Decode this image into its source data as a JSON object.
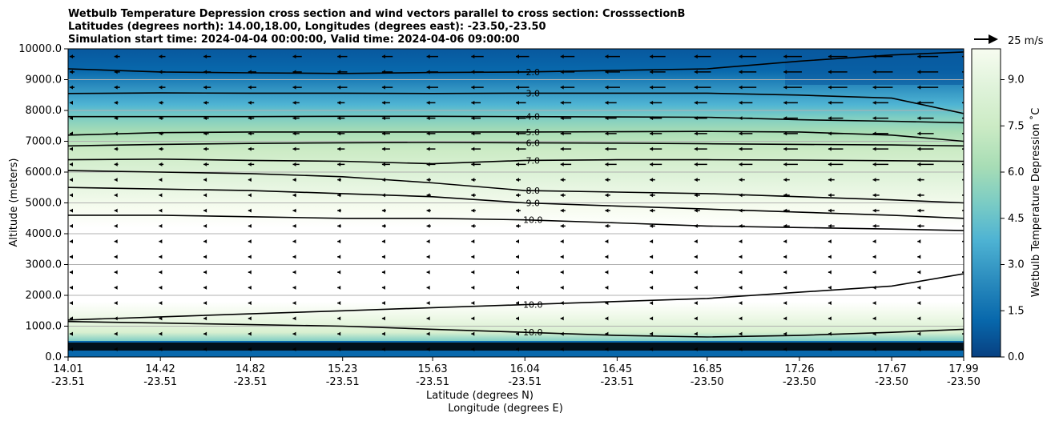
{
  "chart_data": {
    "type": "filled-contour",
    "title_lines": [
      "Wetbulb Temperature Depression cross section and wind vectors parallel to cross section: CrosssectionB",
      "Latitudes (degrees north): 14.00,18.00, Longitudes (degrees east): -23.50,-23.50",
      "Simulation start time: 2024-04-04 00:00:00, Valid time: 2024-04-06 09:00:00"
    ],
    "ylabel": "Altitude (meters)",
    "xlabel_lat": "Latitude (degrees N)",
    "xlabel_lon": "Longitude (degrees E)",
    "ylim": [
      0,
      10000
    ],
    "y_ticks": [
      {
        "value": 0,
        "label": "0.0"
      },
      {
        "value": 1000,
        "label": "1000.0"
      },
      {
        "value": 2000,
        "label": "2000.0"
      },
      {
        "value": 3000,
        "label": "3000.0"
      },
      {
        "value": 4000,
        "label": "4000.0"
      },
      {
        "value": 5000,
        "label": "5000.0"
      },
      {
        "value": 6000,
        "label": "6000.0"
      },
      {
        "value": 7000,
        "label": "7000.0"
      },
      {
        "value": 8000,
        "label": "8000.0"
      },
      {
        "value": 9000,
        "label": "9000.0"
      },
      {
        "value": 10000,
        "label": "10000.0"
      }
    ],
    "xlim": [
      14.01,
      17.99
    ],
    "x_ticks": [
      {
        "lat": "14.01",
        "lon": "-23.51",
        "value": 14.01
      },
      {
        "lat": "14.42",
        "lon": "-23.51",
        "value": 14.42
      },
      {
        "lat": "14.82",
        "lon": "-23.51",
        "value": 14.82
      },
      {
        "lat": "15.23",
        "lon": "-23.51",
        "value": 15.23
      },
      {
        "lat": "15.63",
        "lon": "-23.51",
        "value": 15.63
      },
      {
        "lat": "16.04",
        "lon": "-23.51",
        "value": 16.04
      },
      {
        "lat": "16.45",
        "lon": "-23.51",
        "value": 16.45
      },
      {
        "lat": "16.85",
        "lon": "-23.50",
        "value": 16.85
      },
      {
        "lat": "17.26",
        "lon": "-23.50",
        "value": 17.26
      },
      {
        "lat": "17.67",
        "lon": "-23.50",
        "value": 17.67
      },
      {
        "lat": "17.99",
        "lon": "-23.50",
        "value": 17.99
      }
    ],
    "colorbar": {
      "label": "Wetbulb Temperature Depression ˚C",
      "range": [
        0,
        10
      ],
      "ticks": [
        "0.0",
        "1.5",
        "3.0",
        "4.5",
        "6.0",
        "7.5",
        "9.0"
      ],
      "tick_values": [
        0,
        1.5,
        3.0,
        4.5,
        6.0,
        7.5,
        9.0
      ]
    },
    "wind_key": {
      "label": "25 m/s",
      "speed": 25
    },
    "contour_lines": [
      {
        "level": 2.0,
        "label": "2.0",
        "altitude": [
          9350,
          9250,
          9220,
          9200,
          9230,
          9250,
          9300,
          9350,
          9600,
          9800,
          9900
        ]
      },
      {
        "level": 3.0,
        "label": "3.0",
        "altitude": [
          8550,
          8570,
          8560,
          8560,
          8550,
          8560,
          8560,
          8560,
          8500,
          8400,
          7900
        ]
      },
      {
        "level": 4.0,
        "label": "4.0",
        "altitude": [
          7800,
          7800,
          7800,
          7810,
          7810,
          7800,
          7790,
          7780,
          7700,
          7650,
          7600
        ]
      },
      {
        "level": 5.0,
        "label": "5.0",
        "altitude": [
          7200,
          7280,
          7300,
          7300,
          7300,
          7300,
          7310,
          7320,
          7300,
          7200,
          7000
        ]
      },
      {
        "level": 6.0,
        "label": "6.0",
        "altitude": [
          6850,
          6900,
          6930,
          6950,
          6960,
          6950,
          6940,
          6920,
          6900,
          6880,
          6850
        ]
      },
      {
        "level": 7.0,
        "label": "7.0",
        "altitude": [
          6400,
          6420,
          6380,
          6350,
          6270,
          6380,
          6400,
          6400,
          6390,
          6370,
          6350
        ]
      },
      {
        "level": 8.0,
        "label": "8.0",
        "altitude": [
          6050,
          6000,
          5950,
          5850,
          5650,
          5400,
          5350,
          5300,
          5200,
          5100,
          5000
        ]
      },
      {
        "level": 9.0,
        "label": "9.0",
        "altitude": [
          5500,
          5450,
          5400,
          5300,
          5200,
          5000,
          4900,
          4800,
          4700,
          4600,
          4500
        ]
      },
      {
        "level": 10.0,
        "label": "10.0",
        "altitude": [
          4600,
          4600,
          4550,
          4500,
          4500,
          4450,
          4350,
          4250,
          4200,
          4150,
          4100
        ]
      },
      {
        "level": 10.0,
        "label": "10.0",
        "altitude": [
          1200,
          1300,
          1400,
          1500,
          1600,
          1700,
          1800,
          1900,
          2100,
          2300,
          2700
        ]
      },
      {
        "level": 10.0,
        "label": "10.0",
        "altitude": [
          1150,
          1100,
          1050,
          1000,
          900,
          800,
          700,
          650,
          700,
          800,
          900
        ]
      }
    ]
  }
}
